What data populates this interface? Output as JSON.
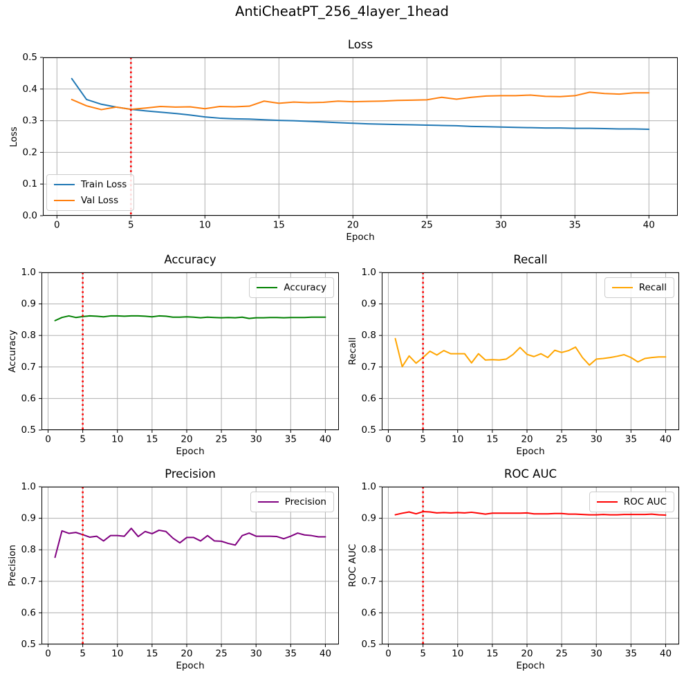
{
  "figure": {
    "title": "AntiCheatPT_256_4layer_1head",
    "background": "#ffffff",
    "grid_color": "#b0b0b0",
    "spine_color": "#000000",
    "tick_color": "#000000"
  },
  "chart_data": [
    {
      "id": "loss",
      "type": "line",
      "title": "Loss",
      "xlabel": "Epoch",
      "ylabel": "Loss",
      "x_range": [
        -0.95,
        41.95
      ],
      "y_range": [
        0.0,
        0.5
      ],
      "xticks": [
        0,
        5,
        10,
        15,
        20,
        25,
        30,
        35,
        40
      ],
      "xtick_labels": [
        "0",
        "5",
        "10",
        "15",
        "20",
        "25",
        "30",
        "35",
        "40"
      ],
      "yticks": [
        0.0,
        0.1,
        0.2,
        0.3,
        0.4,
        0.5
      ],
      "ytick_labels": [
        "0.0",
        "0.1",
        "0.2",
        "0.3",
        "0.4",
        "0.5"
      ],
      "grid": true,
      "legend_position": "lower-left",
      "vline": {
        "x": 5,
        "color": "#ff0000",
        "style": "dotted"
      },
      "x": [
        1,
        2,
        3,
        4,
        5,
        6,
        7,
        8,
        9,
        10,
        11,
        12,
        13,
        14,
        15,
        16,
        17,
        18,
        19,
        20,
        21,
        22,
        23,
        24,
        25,
        26,
        27,
        28,
        29,
        30,
        31,
        32,
        33,
        34,
        35,
        36,
        37,
        38,
        39,
        40
      ],
      "series": [
        {
          "name": "Train Loss",
          "color": "#1f77b4",
          "values": [
            0.433,
            0.367,
            0.352,
            0.343,
            0.336,
            0.331,
            0.327,
            0.323,
            0.318,
            0.312,
            0.308,
            0.306,
            0.305,
            0.303,
            0.301,
            0.3,
            0.298,
            0.296,
            0.294,
            0.292,
            0.29,
            0.289,
            0.288,
            0.287,
            0.286,
            0.285,
            0.284,
            0.282,
            0.281,
            0.28,
            0.279,
            0.278,
            0.277,
            0.277,
            0.276,
            0.276,
            0.275,
            0.274,
            0.274,
            0.273
          ]
        },
        {
          "name": "Val Loss",
          "color": "#ff7f0e",
          "values": [
            0.367,
            0.347,
            0.335,
            0.343,
            0.336,
            0.34,
            0.345,
            0.343,
            0.344,
            0.338,
            0.345,
            0.344,
            0.346,
            0.362,
            0.355,
            0.359,
            0.357,
            0.358,
            0.362,
            0.36,
            0.361,
            0.362,
            0.364,
            0.365,
            0.366,
            0.374,
            0.368,
            0.374,
            0.378,
            0.379,
            0.379,
            0.381,
            0.377,
            0.376,
            0.379,
            0.39,
            0.386,
            0.384,
            0.388,
            0.388
          ]
        }
      ]
    },
    {
      "id": "accuracy",
      "type": "line",
      "title": "Accuracy",
      "xlabel": "Epoch",
      "ylabel": "Accuracy",
      "x_range": [
        -0.95,
        41.95
      ],
      "y_range": [
        0.5,
        1.0
      ],
      "xticks": [
        0,
        5,
        10,
        15,
        20,
        25,
        30,
        35,
        40
      ],
      "xtick_labels": [
        "0",
        "5",
        "10",
        "15",
        "20",
        "25",
        "30",
        "35",
        "40"
      ],
      "yticks": [
        0.5,
        0.6,
        0.7,
        0.8,
        0.9,
        1.0
      ],
      "ytick_labels": [
        "0.5",
        "0.6",
        "0.7",
        "0.8",
        "0.9",
        "1.0"
      ],
      "grid": true,
      "legend_position": "upper-right",
      "vline": {
        "x": 5,
        "color": "#ff0000",
        "style": "dotted"
      },
      "x": [
        1,
        2,
        3,
        4,
        5,
        6,
        7,
        8,
        9,
        10,
        11,
        12,
        13,
        14,
        15,
        16,
        17,
        18,
        19,
        20,
        21,
        22,
        23,
        24,
        25,
        26,
        27,
        28,
        29,
        30,
        31,
        32,
        33,
        34,
        35,
        36,
        37,
        38,
        39,
        40
      ],
      "series": [
        {
          "name": "Accuracy",
          "color": "#008000",
          "values": [
            0.847,
            0.857,
            0.862,
            0.857,
            0.86,
            0.862,
            0.861,
            0.859,
            0.862,
            0.862,
            0.861,
            0.862,
            0.862,
            0.861,
            0.859,
            0.862,
            0.861,
            0.858,
            0.858,
            0.859,
            0.858,
            0.856,
            0.858,
            0.857,
            0.856,
            0.857,
            0.856,
            0.858,
            0.854,
            0.856,
            0.856,
            0.857,
            0.857,
            0.856,
            0.857,
            0.857,
            0.857,
            0.858,
            0.858,
            0.858
          ]
        }
      ]
    },
    {
      "id": "recall",
      "type": "line",
      "title": "Recall",
      "xlabel": "Epoch",
      "ylabel": "Recall",
      "x_range": [
        -0.95,
        41.95
      ],
      "y_range": [
        0.5,
        1.0
      ],
      "xticks": [
        0,
        5,
        10,
        15,
        20,
        25,
        30,
        35,
        40
      ],
      "xtick_labels": [
        "0",
        "5",
        "10",
        "15",
        "20",
        "25",
        "30",
        "35",
        "40"
      ],
      "yticks": [
        0.5,
        0.6,
        0.7,
        0.8,
        0.9,
        1.0
      ],
      "ytick_labels": [
        "0.5",
        "0.6",
        "0.7",
        "0.8",
        "0.9",
        "1.0"
      ],
      "grid": true,
      "legend_position": "upper-right",
      "vline": {
        "x": 5,
        "color": "#ff0000",
        "style": "dotted"
      },
      "x": [
        1,
        2,
        3,
        4,
        5,
        6,
        7,
        8,
        9,
        10,
        11,
        12,
        13,
        14,
        15,
        16,
        17,
        18,
        19,
        20,
        21,
        22,
        23,
        24,
        25,
        26,
        27,
        28,
        29,
        30,
        31,
        32,
        33,
        34,
        35,
        36,
        37,
        38,
        39,
        40
      ],
      "series": [
        {
          "name": "Recall",
          "color": "#ffa500",
          "values": [
            0.79,
            0.701,
            0.735,
            0.712,
            0.73,
            0.75,
            0.738,
            0.752,
            0.742,
            0.742,
            0.742,
            0.713,
            0.742,
            0.722,
            0.723,
            0.722,
            0.725,
            0.74,
            0.762,
            0.74,
            0.733,
            0.742,
            0.73,
            0.753,
            0.746,
            0.752,
            0.763,
            0.73,
            0.706,
            0.725,
            0.727,
            0.73,
            0.734,
            0.739,
            0.73,
            0.716,
            0.727,
            0.73,
            0.732,
            0.732
          ]
        }
      ]
    },
    {
      "id": "precision",
      "type": "line",
      "title": "Precision",
      "xlabel": "Epoch",
      "ylabel": "Precision",
      "x_range": [
        -0.95,
        41.95
      ],
      "y_range": [
        0.5,
        1.0
      ],
      "xticks": [
        0,
        5,
        10,
        15,
        20,
        25,
        30,
        35,
        40
      ],
      "xtick_labels": [
        "0",
        "5",
        "10",
        "15",
        "20",
        "25",
        "30",
        "35",
        "40"
      ],
      "yticks": [
        0.5,
        0.6,
        0.7,
        0.8,
        0.9,
        1.0
      ],
      "ytick_labels": [
        "0.5",
        "0.6",
        "0.7",
        "0.8",
        "0.9",
        "1.0"
      ],
      "grid": true,
      "legend_position": "upper-right",
      "vline": {
        "x": 5,
        "color": "#ff0000",
        "style": "dotted"
      },
      "x": [
        1,
        2,
        3,
        4,
        5,
        6,
        7,
        8,
        9,
        10,
        11,
        12,
        13,
        14,
        15,
        16,
        17,
        18,
        19,
        20,
        21,
        22,
        23,
        24,
        25,
        26,
        27,
        28,
        29,
        30,
        31,
        32,
        33,
        34,
        35,
        36,
        37,
        38,
        39,
        40
      ],
      "series": [
        {
          "name": "Precision",
          "color": "#800080",
          "values": [
            0.776,
            0.86,
            0.852,
            0.855,
            0.848,
            0.84,
            0.843,
            0.828,
            0.845,
            0.845,
            0.843,
            0.868,
            0.842,
            0.858,
            0.851,
            0.862,
            0.858,
            0.837,
            0.822,
            0.839,
            0.839,
            0.828,
            0.845,
            0.828,
            0.827,
            0.82,
            0.815,
            0.845,
            0.853,
            0.843,
            0.843,
            0.843,
            0.842,
            0.835,
            0.843,
            0.853,
            0.847,
            0.845,
            0.841,
            0.841
          ]
        }
      ]
    },
    {
      "id": "roc_auc",
      "type": "line",
      "title": "ROC AUC",
      "xlabel": "Epoch",
      "ylabel": "ROC AUC",
      "x_range": [
        -0.95,
        41.95
      ],
      "y_range": [
        0.5,
        1.0
      ],
      "xticks": [
        0,
        5,
        10,
        15,
        20,
        25,
        30,
        35,
        40
      ],
      "xtick_labels": [
        "0",
        "5",
        "10",
        "15",
        "20",
        "25",
        "30",
        "35",
        "40"
      ],
      "yticks": [
        0.5,
        0.6,
        0.7,
        0.8,
        0.9,
        1.0
      ],
      "ytick_labels": [
        "0.5",
        "0.6",
        "0.7",
        "0.8",
        "0.9",
        "1.0"
      ],
      "grid": true,
      "legend_position": "upper-right",
      "vline": {
        "x": 5,
        "color": "#ff0000",
        "style": "dotted"
      },
      "x": [
        1,
        2,
        3,
        4,
        5,
        6,
        7,
        8,
        9,
        10,
        11,
        12,
        13,
        14,
        15,
        16,
        17,
        18,
        19,
        20,
        21,
        22,
        23,
        24,
        25,
        26,
        27,
        28,
        29,
        30,
        31,
        32,
        33,
        34,
        35,
        36,
        37,
        38,
        39,
        40
      ],
      "series": [
        {
          "name": "ROC AUC",
          "color": "#ff0000",
          "values": [
            0.911,
            0.916,
            0.92,
            0.914,
            0.921,
            0.92,
            0.917,
            0.918,
            0.917,
            0.918,
            0.917,
            0.919,
            0.916,
            0.913,
            0.916,
            0.916,
            0.916,
            0.916,
            0.916,
            0.917,
            0.914,
            0.914,
            0.914,
            0.915,
            0.915,
            0.913,
            0.913,
            0.912,
            0.911,
            0.911,
            0.912,
            0.911,
            0.911,
            0.912,
            0.912,
            0.912,
            0.912,
            0.913,
            0.911,
            0.91
          ]
        }
      ]
    }
  ]
}
